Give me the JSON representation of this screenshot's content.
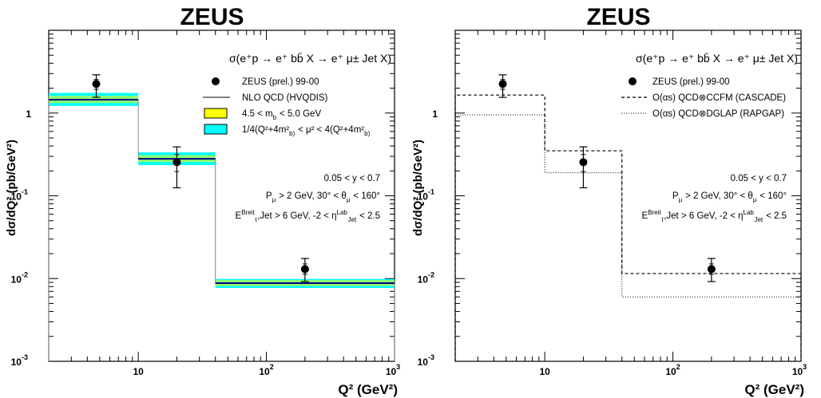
{
  "chart_data": [
    {
      "type": "line",
      "title": "ZEUS",
      "xlabel": "Q²  (GeV²)",
      "ylabel": "dσ/dQ² (pb/GeV²)",
      "xscale": "log",
      "yscale": "log",
      "xlim": [
        2,
        1000
      ],
      "ylim": [
        0.001,
        10
      ],
      "x_ticks": [
        "10",
        "10²",
        "10³"
      ],
      "y_ticks": [
        "10⁻³",
        "10⁻²",
        "10⁻¹",
        "1"
      ],
      "process": "σ(e⁺p → e⁺ bb̄ X  → e⁺ μ± Jet X)",
      "legend_placement": "top-right",
      "legend": [
        {
          "marker": "dot",
          "label": "ZEUS (prel.) 99-00"
        },
        {
          "marker": "line",
          "label": "NLO QCD (HVQDIS)"
        },
        {
          "marker": "box",
          "color": "#ffff00",
          "label": "4.5 < m_b < 5.0 GeV"
        },
        {
          "marker": "box",
          "color": "#00ffff",
          "label": "1/4(Q²+4m²_b) < μ² < 4(Q²+4m²_b)"
        }
      ],
      "cuts": [
        "0.05 < y < 0.7",
        "P_μ > 2 GeV, 30° < θ_μ < 160°",
        "E^Breit_t,Jet > 6 GeV, -2 < η^Lab_Jet < 2.5"
      ],
      "data_points": [
        {
          "x": 4.7,
          "y": 2.25,
          "y_low": 1.55,
          "y_high": 2.9
        },
        {
          "x": 20,
          "y": 0.255,
          "y_low": 0.125,
          "y_high": 0.39
        },
        {
          "x": 200,
          "y": 0.013,
          "y_low": 0.0092,
          "y_high": 0.0175
        }
      ],
      "bin_edges": [
        2,
        10,
        40,
        1000
      ],
      "nlo_central": [
        1.45,
        0.28,
        0.0088
      ],
      "band_mb": [
        [
          1.32,
          1.62
        ],
        [
          0.255,
          0.31
        ],
        [
          0.0081,
          0.0096
        ]
      ],
      "band_scale": [
        [
          1.22,
          1.75
        ],
        [
          0.235,
          0.335
        ],
        [
          0.0077,
          0.0099
        ]
      ],
      "colors": {
        "band_mb": "#ffff00",
        "band_scale": "#00ffff",
        "nlo_line": "#000080"
      }
    },
    {
      "type": "line",
      "title": "ZEUS",
      "xlabel": "Q²  (GeV²)",
      "ylabel": "dσ/dQ² (pb/GeV²)",
      "xscale": "log",
      "yscale": "log",
      "xlim": [
        2,
        1000
      ],
      "ylim": [
        0.001,
        10
      ],
      "x_ticks": [
        "10",
        "10²",
        "10³"
      ],
      "y_ticks": [
        "10⁻³",
        "10⁻²",
        "10⁻¹",
        "1"
      ],
      "process": "σ(e⁺p → e⁺ bb̄ X  → e⁺ μ± Jet X)",
      "legend_placement": "top-right",
      "legend": [
        {
          "marker": "dot",
          "label": "ZEUS (prel.) 99-00"
        },
        {
          "marker": "dashed",
          "label": "O(αs) QCD⊗CCFM (CASCADE)"
        },
        {
          "marker": "dotted",
          "label": "O(αs) QCD⊗DGLAP (RAPGAP)"
        }
      ],
      "cuts": [
        "0.05 < y < 0.7",
        "P_μ > 2 GeV, 30° < θ_μ < 160°",
        "E^Breit_t,Jet > 6 GeV, -2 < η^Lab_Jet < 2.5"
      ],
      "data_points": [
        {
          "x": 4.7,
          "y": 2.25,
          "y_low": 1.55,
          "y_high": 2.9
        },
        {
          "x": 20,
          "y": 0.255,
          "y_low": 0.125,
          "y_high": 0.39
        },
        {
          "x": 200,
          "y": 0.013,
          "y_low": 0.0092,
          "y_high": 0.0175
        }
      ],
      "bin_edges": [
        2,
        10,
        40,
        1000
      ],
      "cascade": [
        1.65,
        0.35,
        0.0115
      ],
      "rapgap": [
        0.95,
        0.19,
        0.006
      ]
    }
  ]
}
